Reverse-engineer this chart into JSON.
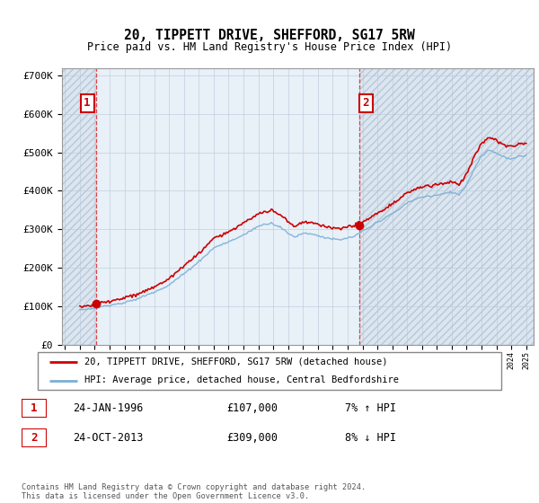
{
  "title": "20, TIPPETT DRIVE, SHEFFORD, SG17 5RW",
  "subtitle": "Price paid vs. HM Land Registry's House Price Index (HPI)",
  "legend_line1": "20, TIPPETT DRIVE, SHEFFORD, SG17 5RW (detached house)",
  "legend_line2": "HPI: Average price, detached house, Central Bedfordshire",
  "sale1_date": "24-JAN-1996",
  "sale1_price": "£107,000",
  "sale1_hpi": "7% ↑ HPI",
  "sale2_date": "24-OCT-2013",
  "sale2_price": "£309,000",
  "sale2_hpi": "8% ↓ HPI",
  "footer": "Contains HM Land Registry data © Crown copyright and database right 2024.\nThis data is licensed under the Open Government Licence v3.0.",
  "sale1_x": 1996.07,
  "sale1_y": 107000,
  "sale2_x": 2013.81,
  "sale2_y": 309000,
  "price_line_color": "#cc0000",
  "hpi_line_color": "#7ab0d4",
  "sale_marker_color": "#cc0000",
  "dashed_line_color": "#dd4444",
  "hatch_bg_color": "#dce6f0",
  "chart_bg_color": "#e8f0f8",
  "grid_color": "#b8c8d8",
  "background_color": "#ffffff",
  "ylim": [
    0,
    720000
  ],
  "yticks": [
    0,
    100000,
    200000,
    300000,
    400000,
    500000,
    600000,
    700000
  ],
  "ytick_labels": [
    "£0",
    "£100K",
    "£200K",
    "£300K",
    "£400K",
    "£500K",
    "£600K",
    "£700K"
  ],
  "xlim_start": 1993.8,
  "xlim_end": 2025.5
}
